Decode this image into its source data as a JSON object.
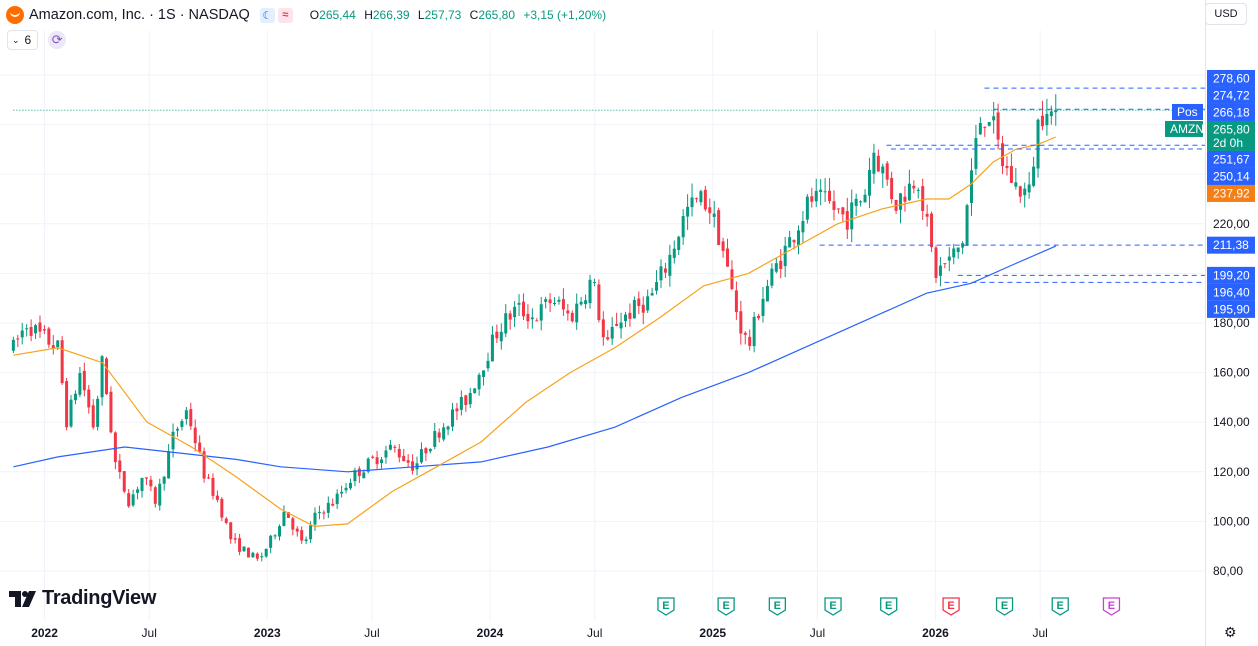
{
  "header": {
    "symbol_line": "Amazon.com, Inc. · 1S · NASDAQ",
    "open_key": "O",
    "open": "265,44",
    "high_key": "H",
    "high": "266,39",
    "low_key": "L",
    "low": "257,73",
    "close_key": "C",
    "close": "265,80",
    "change": "+3,15 (+1,20%)",
    "indicator_count": "6",
    "currency": "USD"
  },
  "brand": "TradingView",
  "colors": {
    "up": "#089981",
    "down": "#f23645",
    "ma_fast": "#f7a31c",
    "ma_slow": "#2962ff",
    "last_price": "#089981",
    "fast_badge": "#f57f17"
  },
  "icons": [
    "amazon-logo-icon",
    "moon-icon",
    "wave-icon",
    "chevron-down-icon",
    "sync-icon",
    "tradingview-logo-icon",
    "earnings-icon",
    "settings-icon"
  ],
  "chart_data": {
    "type": "candlestick",
    "interval": "1S",
    "ylim": [
      75,
      282
    ],
    "y_ticks": [
      80,
      100,
      120,
      140,
      160,
      180,
      220
    ],
    "y_tick_labels": [
      "80,00",
      "100,00",
      "120,00",
      "140,00",
      "160,00",
      "180,00",
      "220,00"
    ],
    "x_labels": [
      {
        "t": 0.14,
        "label": "2022"
      },
      {
        "t": 0.61,
        "label": "Jul"
      },
      {
        "t": 1.14,
        "label": "2023"
      },
      {
        "t": 1.61,
        "label": "Jul"
      },
      {
        "t": 2.14,
        "label": "2024"
      },
      {
        "t": 2.61,
        "label": "Jul"
      },
      {
        "t": 3.14,
        "label": "2025"
      },
      {
        "t": 3.61,
        "label": "Jul"
      },
      {
        "t": 4.14,
        "label": "2026"
      },
      {
        "t": 4.61,
        "label": "Jul"
      }
    ],
    "price_path": [
      [
        0.0,
        170
      ],
      [
        0.06,
        180
      ],
      [
        0.12,
        175
      ],
      [
        0.2,
        170
      ],
      [
        0.24,
        140
      ],
      [
        0.3,
        160
      ],
      [
        0.36,
        138
      ],
      [
        0.4,
        165
      ],
      [
        0.46,
        122
      ],
      [
        0.52,
        108
      ],
      [
        0.58,
        118
      ],
      [
        0.64,
        108
      ],
      [
        0.72,
        135
      ],
      [
        0.78,
        145
      ],
      [
        0.86,
        118
      ],
      [
        0.92,
        108
      ],
      [
        0.98,
        92
      ],
      [
        1.04,
        88
      ],
      [
        1.1,
        84
      ],
      [
        1.16,
        93
      ],
      [
        1.22,
        105
      ],
      [
        1.3,
        90
      ],
      [
        1.36,
        103
      ],
      [
        1.44,
        108
      ],
      [
        1.52,
        118
      ],
      [
        1.62,
        125
      ],
      [
        1.7,
        130
      ],
      [
        1.8,
        122
      ],
      [
        1.84,
        128
      ],
      [
        1.94,
        140
      ],
      [
        2.04,
        150
      ],
      [
        2.1,
        162
      ],
      [
        2.18,
        178
      ],
      [
        2.26,
        186
      ],
      [
        2.34,
        182
      ],
      [
        2.42,
        190
      ],
      [
        2.5,
        182
      ],
      [
        2.6,
        198
      ],
      [
        2.66,
        168
      ],
      [
        2.7,
        180
      ],
      [
        2.78,
        185
      ],
      [
        2.86,
        190
      ],
      [
        2.94,
        205
      ],
      [
        3.02,
        225
      ],
      [
        3.08,
        230
      ],
      [
        3.12,
        228
      ],
      [
        3.18,
        212
      ],
      [
        3.22,
        195
      ],
      [
        3.26,
        180
      ],
      [
        3.3,
        170
      ],
      [
        3.36,
        190
      ],
      [
        3.42,
        202
      ],
      [
        3.48,
        212
      ],
      [
        3.58,
        230
      ],
      [
        3.66,
        228
      ],
      [
        3.74,
        222
      ],
      [
        3.82,
        232
      ],
      [
        3.86,
        250
      ],
      [
        3.92,
        238
      ],
      [
        3.96,
        228
      ],
      [
        4.02,
        235
      ],
      [
        4.06,
        240
      ],
      [
        4.1,
        220
      ],
      [
        4.14,
        200
      ],
      [
        4.2,
        205
      ],
      [
        4.26,
        212
      ],
      [
        4.3,
        240
      ],
      [
        4.34,
        262
      ],
      [
        4.38,
        265
      ],
      [
        4.44,
        245
      ],
      [
        4.5,
        235
      ],
      [
        4.56,
        232
      ],
      [
        4.6,
        260
      ],
      [
        4.64,
        270
      ],
      [
        4.67,
        261
      ],
      [
        4.68,
        265.8
      ]
    ],
    "ma_fast": [
      [
        0.0,
        167
      ],
      [
        0.2,
        170
      ],
      [
        0.4,
        164
      ],
      [
        0.6,
        140
      ],
      [
        0.8,
        130
      ],
      [
        1.0,
        118
      ],
      [
        1.2,
        105
      ],
      [
        1.35,
        98
      ],
      [
        1.5,
        99
      ],
      [
        1.7,
        112
      ],
      [
        1.9,
        122
      ],
      [
        2.1,
        132
      ],
      [
        2.3,
        148
      ],
      [
        2.5,
        160
      ],
      [
        2.7,
        170
      ],
      [
        2.9,
        182
      ],
      [
        3.1,
        195
      ],
      [
        3.3,
        200
      ],
      [
        3.5,
        210
      ],
      [
        3.7,
        220
      ],
      [
        3.9,
        226
      ],
      [
        4.1,
        230
      ],
      [
        4.2,
        230
      ],
      [
        4.3,
        236
      ],
      [
        4.4,
        245
      ],
      [
        4.5,
        250
      ],
      [
        4.6,
        252
      ],
      [
        4.68,
        255
      ]
    ],
    "ma_slow": [
      [
        0.0,
        122
      ],
      [
        0.2,
        126
      ],
      [
        0.5,
        130
      ],
      [
        0.8,
        127
      ],
      [
        1.0,
        125
      ],
      [
        1.2,
        122
      ],
      [
        1.5,
        120
      ],
      [
        1.8,
        122
      ],
      [
        2.1,
        124
      ],
      [
        2.4,
        130
      ],
      [
        2.7,
        138
      ],
      [
        3.0,
        150
      ],
      [
        3.3,
        160
      ],
      [
        3.6,
        172
      ],
      [
        3.9,
        184
      ],
      [
        4.1,
        192
      ],
      [
        4.3,
        196
      ],
      [
        4.5,
        204
      ],
      [
        4.68,
        211
      ]
    ],
    "price_levels": [
      {
        "value": 278.6,
        "label": "278,60",
        "color": "#2962ff",
        "style": "badge"
      },
      {
        "value": 274.72,
        "label": "274,72",
        "color": "#2962ff",
        "style": "dashed",
        "t0": 4.36
      },
      {
        "value": 266.18,
        "label": "266,18",
        "color": "#2962ff",
        "style": "dashed",
        "t0": 4.4,
        "tag": "Pos"
      },
      {
        "value": 265.8,
        "label": "265,80",
        "color": "#089981",
        "style": "dotted",
        "t0": 0,
        "tag": "AMZN",
        "sub": "2d 0h"
      },
      {
        "value": 251.67,
        "label": "251,67",
        "color": "#2962ff",
        "style": "dashed",
        "t0": 3.92
      },
      {
        "value": 250.14,
        "label": "250,14",
        "color": "#2962ff",
        "style": "dashed",
        "t0": 3.94
      },
      {
        "value": 237.92,
        "label": "237,92",
        "color": "#f57f17",
        "style": "badge"
      },
      {
        "value": 211.38,
        "label": "211,38",
        "color": "#2962ff",
        "style": "dashed",
        "t0": 3.62
      },
      {
        "value": 199.2,
        "label": "199,20",
        "color": "#2962ff",
        "style": "dashed",
        "t0": 4.24
      },
      {
        "value": 196.4,
        "label": "196,40",
        "color": "#2962ff",
        "style": "dashed",
        "t0": 4.18
      },
      {
        "value": 195.9,
        "label": "195,90",
        "color": "#2962ff",
        "style": "badge"
      }
    ],
    "earnings_markers": [
      {
        "t": 2.93,
        "label": "E",
        "color": "#089981"
      },
      {
        "t": 3.2,
        "label": "E",
        "color": "#089981"
      },
      {
        "t": 3.43,
        "label": "E",
        "color": "#089981"
      },
      {
        "t": 3.68,
        "label": "E",
        "color": "#089981"
      },
      {
        "t": 3.93,
        "label": "E",
        "color": "#089981"
      },
      {
        "t": 4.21,
        "label": "E",
        "color": "#f23645"
      },
      {
        "t": 4.45,
        "label": "E",
        "color": "#089981"
      },
      {
        "t": 4.7,
        "label": "E",
        "color": "#089981"
      },
      {
        "t": 4.93,
        "label": "E",
        "color": "#c940d8"
      }
    ]
  }
}
